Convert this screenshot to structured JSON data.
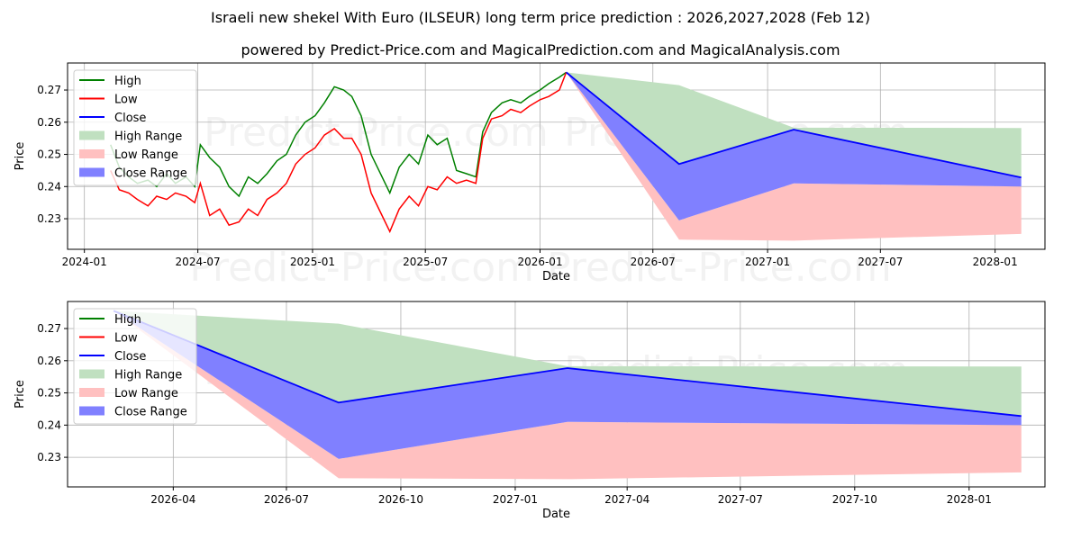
{
  "title": "Israeli new shekel With Euro (ILSEUR) long term price prediction : 2026,2027,2028 (Feb 12)",
  "subtitle": "powered by Predict-Price.com and MagicalPrediction.com and MagicalAnalysis.com",
  "watermark": "Predict-Price.com",
  "colors": {
    "high": "#008000",
    "low": "#ff0000",
    "close": "#0000ff",
    "high_range": "#c0e0c0",
    "low_range": "#ffc0c0",
    "close_range": "#8080ff"
  },
  "chart_data": [
    {
      "type": "line",
      "xlabel": "Date",
      "ylabel": "Price",
      "xlim": [
        "2023-12-05",
        "2028-03-21"
      ],
      "ylim": [
        0.2205,
        0.2784
      ],
      "grid": true,
      "legend_position": "top-left",
      "xticks": [
        "2024-01",
        "2024-07",
        "2025-01",
        "2025-07",
        "2026-01",
        "2026-07",
        "2027-01",
        "2027-07",
        "2028-01"
      ],
      "yticks": [
        "0.23",
        "0.24",
        "0.25",
        "0.26",
        "0.27"
      ],
      "legend": [
        "High",
        "Low",
        "Close",
        "High Range",
        "Low Range",
        "Close Range"
      ],
      "history": {
        "dates": [
          "2024-02-12",
          "2024-02-26",
          "2024-03-12",
          "2024-03-26",
          "2024-04-12",
          "2024-04-26",
          "2024-05-12",
          "2024-05-26",
          "2024-06-12",
          "2024-06-26",
          "2024-07-05",
          "2024-07-20",
          "2024-08-05",
          "2024-08-20",
          "2024-09-05",
          "2024-09-20",
          "2024-10-05",
          "2024-10-20",
          "2024-11-05",
          "2024-11-20",
          "2024-12-05",
          "2024-12-20",
          "2025-01-05",
          "2025-01-20",
          "2025-02-05",
          "2025-02-20",
          "2025-03-05",
          "2025-03-20",
          "2025-04-05",
          "2025-04-20",
          "2025-05-05",
          "2025-05-20",
          "2025-06-05",
          "2025-06-20",
          "2025-07-05",
          "2025-07-20",
          "2025-08-05",
          "2025-08-20",
          "2025-09-05",
          "2025-09-20",
          "2025-10-01",
          "2025-10-15",
          "2025-11-01",
          "2025-11-15",
          "2025-12-01",
          "2025-12-15",
          "2026-01-01",
          "2026-01-15",
          "2026-02-01",
          "2026-02-12"
        ],
        "high": [
          0.253,
          0.246,
          0.243,
          0.241,
          0.242,
          0.24,
          0.244,
          0.241,
          0.243,
          0.24,
          0.253,
          0.249,
          0.246,
          0.24,
          0.237,
          0.243,
          0.241,
          0.244,
          0.248,
          0.25,
          0.256,
          0.26,
          0.262,
          0.266,
          0.271,
          0.27,
          0.268,
          0.262,
          0.25,
          0.244,
          0.238,
          0.246,
          0.25,
          0.247,
          0.256,
          0.253,
          0.255,
          0.245,
          0.244,
          0.243,
          0.257,
          0.263,
          0.266,
          0.267,
          0.266,
          0.268,
          0.27,
          0.272,
          0.274,
          0.2755
        ],
        "low": [
          0.245,
          0.239,
          0.238,
          0.236,
          0.234,
          0.237,
          0.236,
          0.238,
          0.237,
          0.235,
          0.241,
          0.231,
          0.233,
          0.228,
          0.229,
          0.233,
          0.231,
          0.236,
          0.238,
          0.241,
          0.247,
          0.25,
          0.252,
          0.256,
          0.258,
          0.255,
          0.255,
          0.25,
          0.238,
          0.232,
          0.226,
          0.233,
          0.237,
          0.234,
          0.24,
          0.239,
          0.243,
          0.241,
          0.242,
          0.241,
          0.255,
          0.261,
          0.262,
          0.264,
          0.263,
          0.265,
          0.267,
          0.268,
          0.27,
          0.2755
        ]
      },
      "forecast": {
        "dates": [
          "2026-02-12",
          "2026-08-12",
          "2027-02-12",
          "2028-02-12"
        ],
        "close": [
          0.2755,
          0.247,
          0.2577,
          0.2428
        ],
        "high": [
          0.2755,
          0.2715,
          0.2583,
          0.2582
        ],
        "close_low": [
          0.2755,
          0.2295,
          0.241,
          0.24
        ],
        "low": [
          0.2755,
          0.2235,
          0.2232,
          0.2253
        ]
      }
    },
    {
      "type": "line",
      "xlabel": "Date",
      "ylabel": "Price",
      "xlim": [
        "2026-01-06",
        "2028-03-02"
      ],
      "ylim": [
        0.2208,
        0.2784
      ],
      "grid": true,
      "legend_position": "top-left",
      "xticks": [
        "2026-04",
        "2026-07",
        "2026-10",
        "2027-01",
        "2027-04",
        "2027-07",
        "2027-10",
        "2028-01"
      ],
      "yticks": [
        "0.23",
        "0.24",
        "0.25",
        "0.26",
        "0.27"
      ],
      "legend": [
        "High",
        "Low",
        "Close",
        "High Range",
        "Low Range",
        "Close Range"
      ]
    }
  ]
}
